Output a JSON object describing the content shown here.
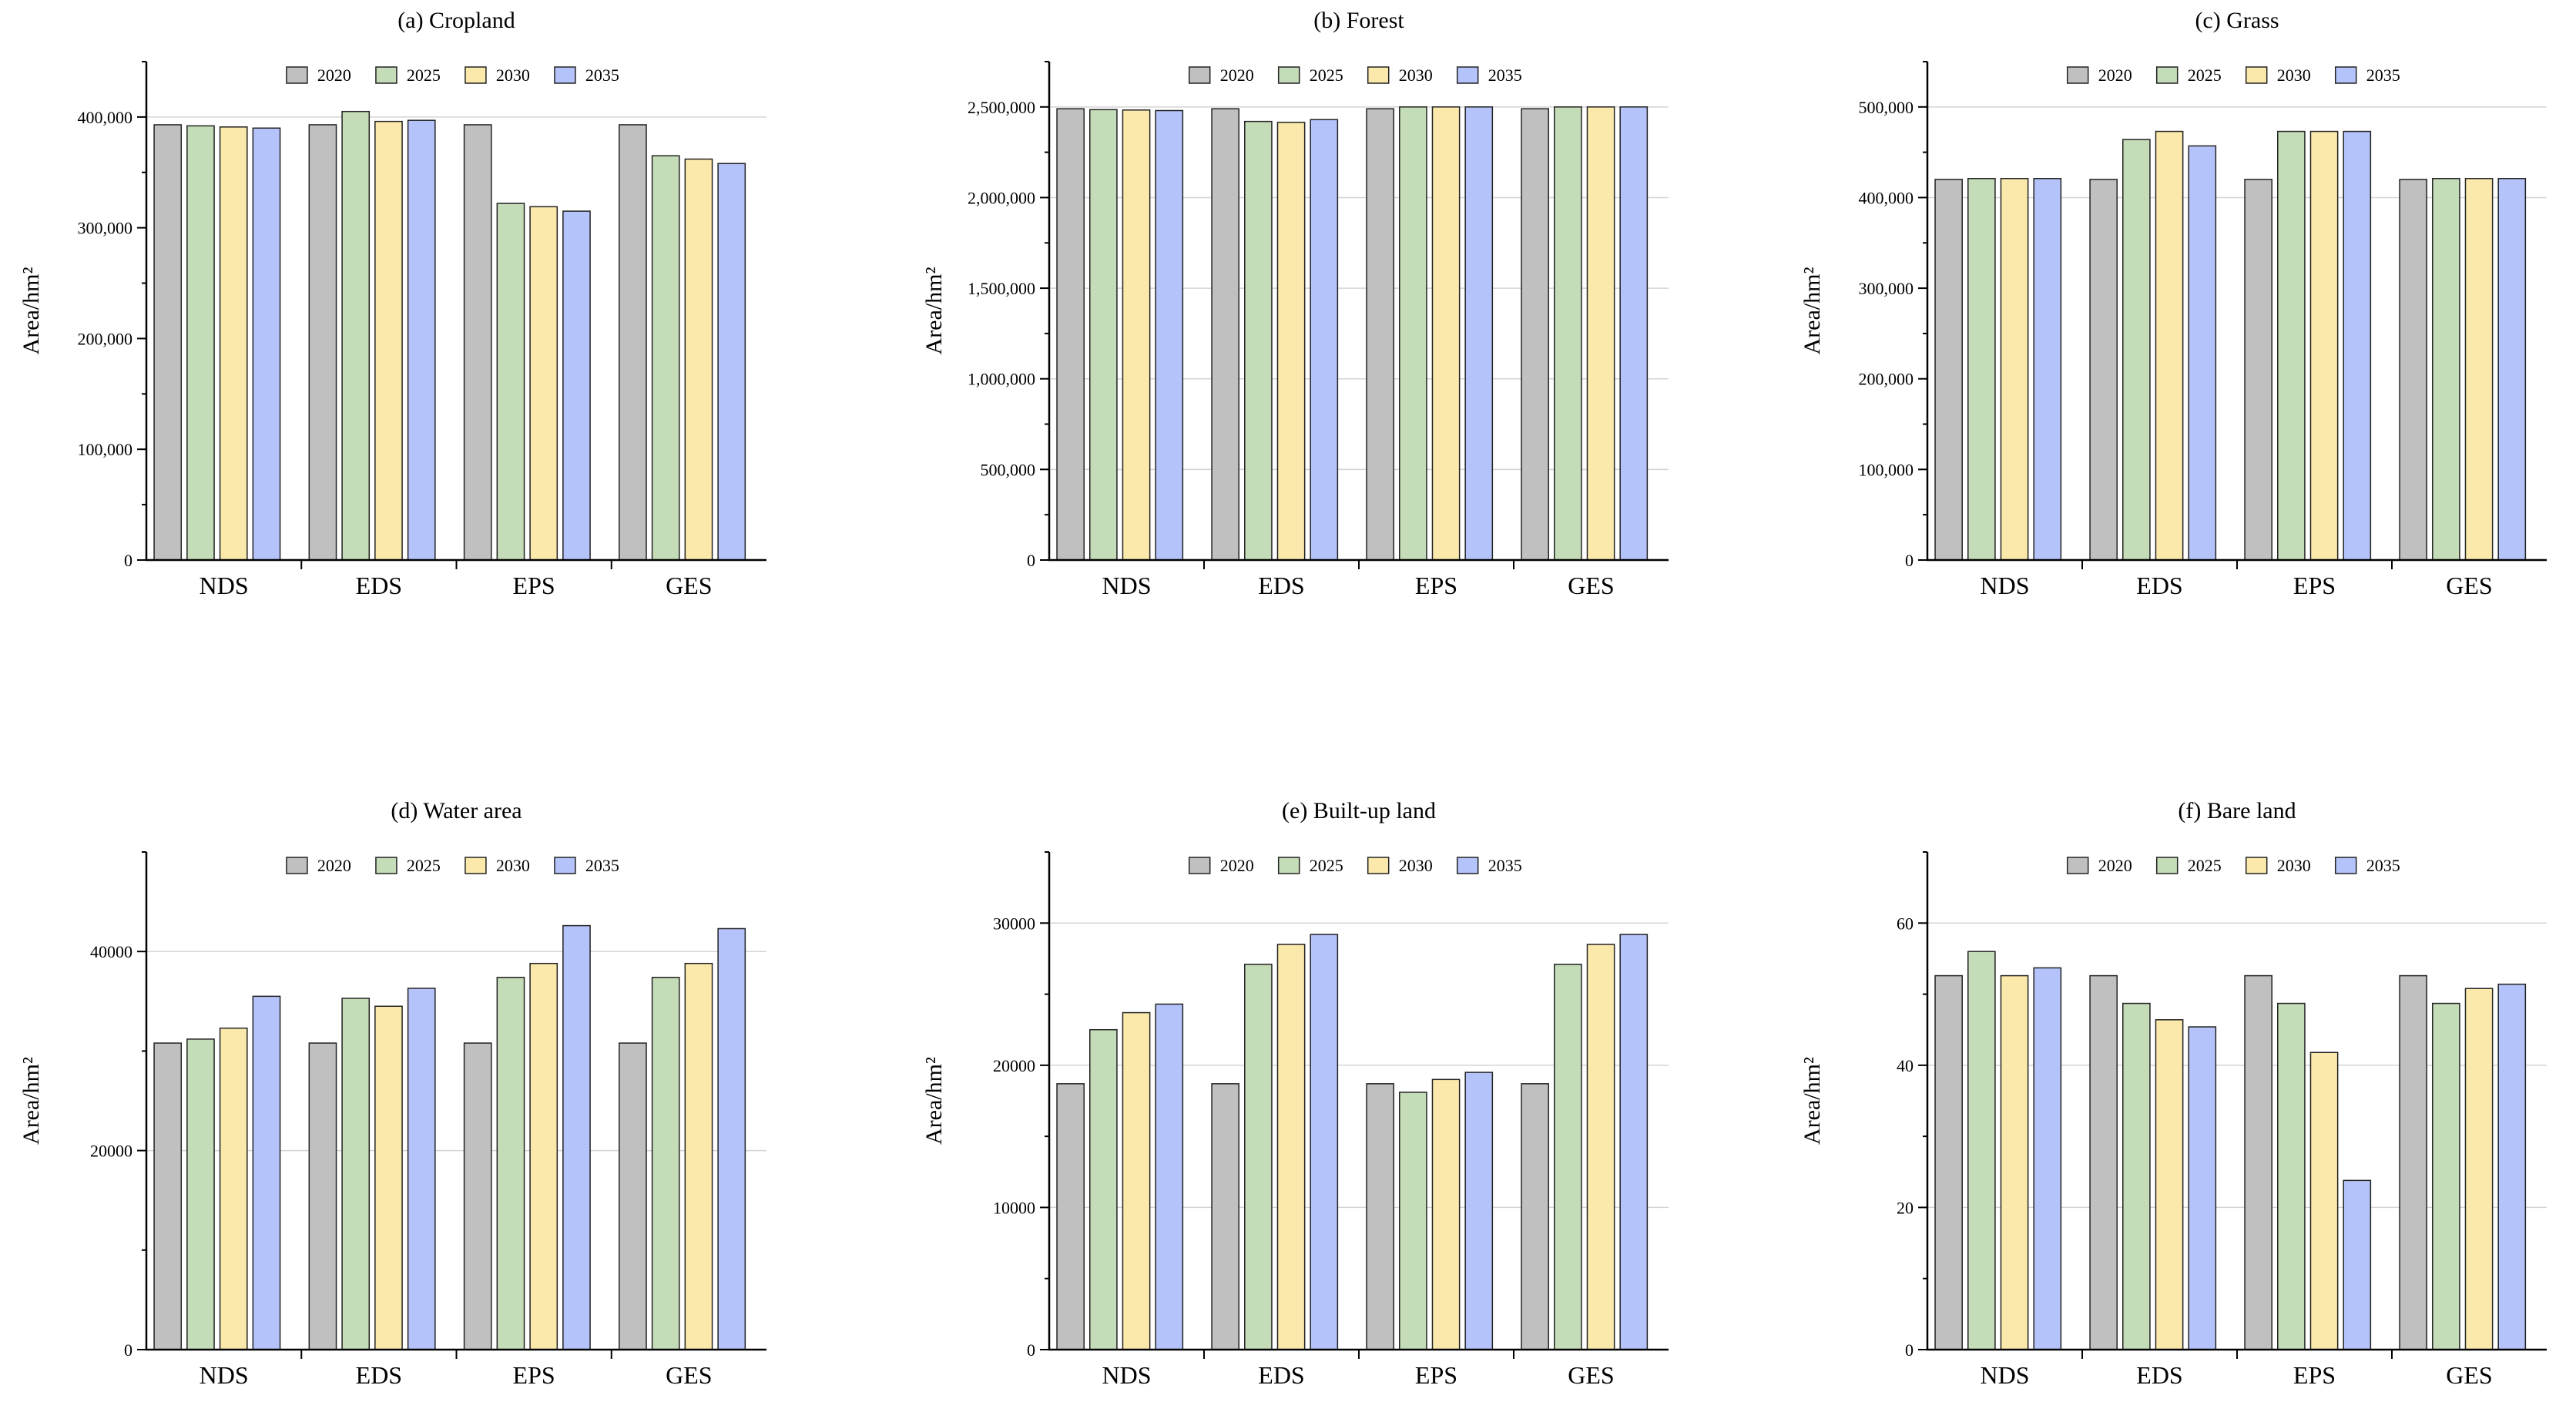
{
  "chart_data": [
    {
      "type": "bar",
      "title": "(a) Cropland",
      "xlabel": "",
      "ylabel": "Area/hm²",
      "ylim": [
        0,
        450000
      ],
      "yticks": [
        0,
        100000,
        200000,
        300000,
        400000
      ],
      "ytick_labels": [
        "0",
        "100,000",
        "200,000",
        "300,000",
        "400,000"
      ],
      "gridlines": [
        400000
      ],
      "categories": [
        "NDS",
        "EDS",
        "EPS",
        "GES"
      ],
      "series": [
        {
          "name": "2020",
          "color": "#c0c0c0",
          "values": [
            393000,
            393000,
            393000,
            393000
          ]
        },
        {
          "name": "2025",
          "color": "#c5dcb8",
          "values": [
            392000,
            405000,
            322000,
            365000
          ]
        },
        {
          "name": "2030",
          "color": "#fbe9ac",
          "values": [
            391000,
            396000,
            319000,
            362000
          ]
        },
        {
          "name": "2035",
          "color": "#b4c3fa",
          "values": [
            390000,
            397000,
            315000,
            358000
          ]
        }
      ]
    },
    {
      "type": "bar",
      "title": "(b) Forest",
      "xlabel": "",
      "ylabel": "Area/hm²",
      "ylim": [
        0,
        2750000
      ],
      "yticks": [
        0,
        500000,
        1000000,
        1500000,
        2000000,
        2500000
      ],
      "ytick_labels": [
        "0",
        "500,000",
        "1,000,000",
        "1,500,000",
        "2,000,000",
        "2,500,000"
      ],
      "gridlines": [
        500000,
        1000000,
        1500000,
        2000000,
        2500000
      ],
      "categories": [
        "NDS",
        "EDS",
        "EPS",
        "GES"
      ],
      "series": [
        {
          "name": "2020",
          "color": "#c0c0c0",
          "values": [
            2490000,
            2490000,
            2490000,
            2490000
          ]
        },
        {
          "name": "2025",
          "color": "#c5dcb8",
          "values": [
            2485000,
            2420000,
            2500000,
            2500000
          ]
        },
        {
          "name": "2030",
          "color": "#fbe9ac",
          "values": [
            2483000,
            2415000,
            2500000,
            2500000
          ]
        },
        {
          "name": "2035",
          "color": "#b4c3fa",
          "values": [
            2480000,
            2430000,
            2500000,
            2500000
          ]
        }
      ]
    },
    {
      "type": "bar",
      "title": "(c) Grass",
      "xlabel": "",
      "ylabel": "Area/hm²",
      "ylim": [
        0,
        550000
      ],
      "yticks": [
        0,
        100000,
        200000,
        300000,
        400000,
        500000
      ],
      "ytick_labels": [
        "0",
        "100,000",
        "200,000",
        "300,000",
        "400,000",
        "500,000"
      ],
      "gridlines": [
        400000,
        500000
      ],
      "categories": [
        "NDS",
        "EDS",
        "EPS",
        "GES"
      ],
      "series": [
        {
          "name": "2020",
          "color": "#c0c0c0",
          "values": [
            420000,
            420000,
            420000,
            420000
          ]
        },
        {
          "name": "2025",
          "color": "#c5dcb8",
          "values": [
            421000,
            464000,
            473000,
            421000
          ]
        },
        {
          "name": "2030",
          "color": "#fbe9ac",
          "values": [
            421000,
            473000,
            473000,
            421000
          ]
        },
        {
          "name": "2035",
          "color": "#b4c3fa",
          "values": [
            421000,
            457000,
            473000,
            421000
          ]
        }
      ]
    },
    {
      "type": "bar",
      "title": "(d) Water area",
      "xlabel": "",
      "ylabel": "Area/hm²",
      "ylim": [
        0,
        50000
      ],
      "yticks": [
        0,
        20000,
        40000
      ],
      "ytick_labels": [
        "0",
        "20000",
        "40000"
      ],
      "gridlines": [
        20000,
        40000
      ],
      "categories": [
        "NDS",
        "EDS",
        "EPS",
        "GES"
      ],
      "series": [
        {
          "name": "2020",
          "color": "#c0c0c0",
          "values": [
            30800,
            30800,
            30800,
            30800
          ]
        },
        {
          "name": "2025",
          "color": "#c5dcb8",
          "values": [
            31200,
            35300,
            37400,
            37400
          ]
        },
        {
          "name": "2030",
          "color": "#fbe9ac",
          "values": [
            32300,
            34500,
            38800,
            38800
          ]
        },
        {
          "name": "2035",
          "color": "#b4c3fa",
          "values": [
            35500,
            36300,
            42600,
            42300
          ]
        }
      ]
    },
    {
      "type": "bar",
      "title": "(e) Built-up land",
      "xlabel": "",
      "ylabel": "Area/hm²",
      "ylim": [
        0,
        35000
      ],
      "yticks": [
        0,
        10000,
        20000,
        30000
      ],
      "ytick_labels": [
        "0",
        "10000",
        "20000",
        "30000"
      ],
      "gridlines": [
        10000,
        20000,
        30000
      ],
      "categories": [
        "NDS",
        "EDS",
        "EPS",
        "GES"
      ],
      "series": [
        {
          "name": "2020",
          "color": "#c0c0c0",
          "values": [
            18700,
            18700,
            18700,
            18700
          ]
        },
        {
          "name": "2025",
          "color": "#c5dcb8",
          "values": [
            22500,
            27100,
            18100,
            27100
          ]
        },
        {
          "name": "2030",
          "color": "#fbe9ac",
          "values": [
            23700,
            28500,
            19000,
            28500
          ]
        },
        {
          "name": "2035",
          "color": "#b4c3fa",
          "values": [
            24300,
            29200,
            19500,
            29200
          ]
        }
      ]
    },
    {
      "type": "bar",
      "title": "(f) Bare land",
      "xlabel": "",
      "ylabel": "Area/hm²",
      "ylim": [
        0,
        70
      ],
      "yticks": [
        0,
        20,
        40,
        60
      ],
      "ytick_labels": [
        "0",
        "20",
        "40",
        "60"
      ],
      "gridlines": [
        20,
        40,
        60
      ],
      "categories": [
        "NDS",
        "EDS",
        "EPS",
        "GES"
      ],
      "series": [
        {
          "name": "2020",
          "color": "#c0c0c0",
          "values": [
            52.6,
            52.6,
            52.6,
            52.6
          ]
        },
        {
          "name": "2025",
          "color": "#c5dcb8",
          "values": [
            56.0,
            48.7,
            48.7,
            48.7
          ]
        },
        {
          "name": "2030",
          "color": "#fbe9ac",
          "values": [
            52.6,
            46.4,
            41.8,
            50.8
          ]
        },
        {
          "name": "2035",
          "color": "#b4c3fa",
          "values": [
            53.7,
            45.4,
            23.8,
            51.4
          ]
        }
      ]
    }
  ]
}
